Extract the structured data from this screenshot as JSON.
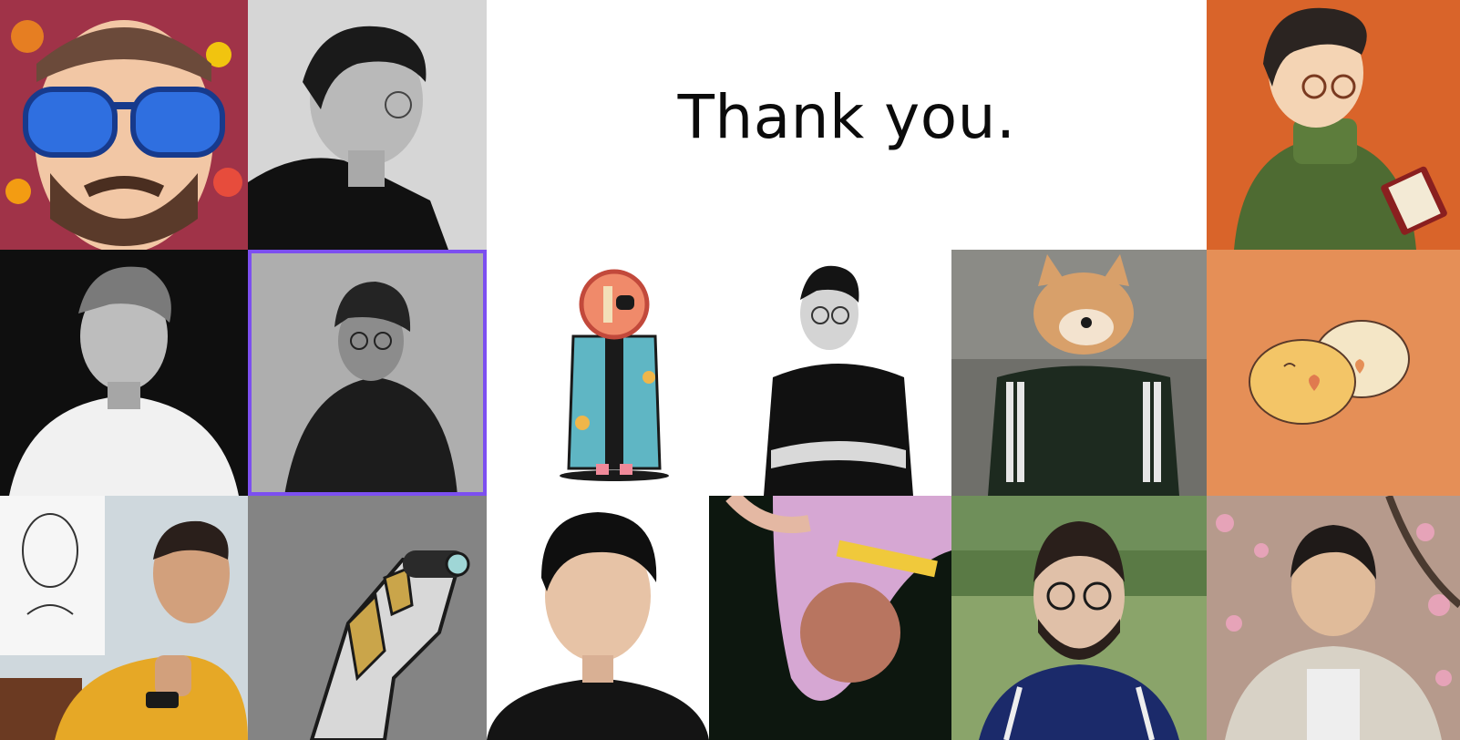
{
  "headline": "Thank you.",
  "colors": {
    "selection_outline": "#7c4ff0",
    "frog_panel": "#e58f57",
    "portrait_orange": "#d9642a",
    "collage_red": "#c0392b"
  },
  "tiles": [
    {
      "name": "tile-sunglasses-illustration",
      "icon": "illustrated-man-blue-sunglasses"
    },
    {
      "name": "tile-bw-profile",
      "icon": "bw-profile-portrait"
    },
    {
      "name": "tile-reader-illustration",
      "icon": "illustrated-man-reading-book"
    },
    {
      "name": "tile-bw-man-white-shirt",
      "icon": "bw-portrait-white-shirt"
    },
    {
      "name": "tile-bw-woman-beanie",
      "icon": "bw-portrait-beanie",
      "selected": true
    },
    {
      "name": "tile-cartoon-coat-character",
      "icon": "cartoon-character-coat"
    },
    {
      "name": "tile-smiling-man-black-tee",
      "icon": "portrait-black-tshirt"
    },
    {
      "name": "tile-shiba-tracksuit",
      "icon": "shiba-in-tracksuit"
    },
    {
      "name": "tile-frog-buns",
      "icon": "two-frog-buns-hearts"
    },
    {
      "name": "tile-man-with-sketch",
      "icon": "portrait-with-sketch"
    },
    {
      "name": "tile-robot-horse",
      "icon": "robot-horse-render"
    },
    {
      "name": "tile-id-photo",
      "icon": "id-photo-portrait"
    },
    {
      "name": "tile-upside-down-hoodie",
      "icon": "upside-down-hoodie-portrait"
    },
    {
      "name": "tile-bearded-man-glasses",
      "icon": "bearded-man-glasses"
    },
    {
      "name": "tile-man-cherry-blossoms",
      "icon": "portrait-cherry-blossoms"
    }
  ]
}
